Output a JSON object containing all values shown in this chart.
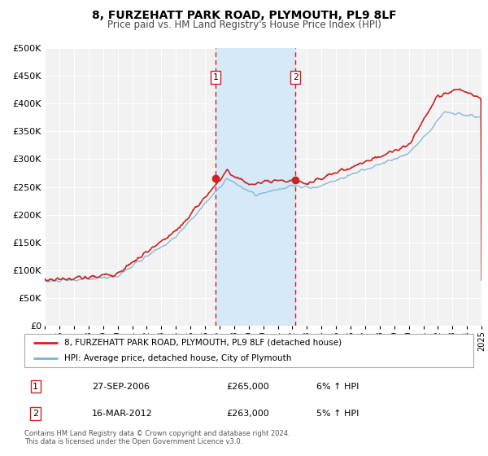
{
  "title": "8, FURZEHATT PARK ROAD, PLYMOUTH, PL9 8LF",
  "subtitle": "Price paid vs. HM Land Registry's House Price Index (HPI)",
  "background_color": "#ffffff",
  "plot_bg_color": "#f2f2f2",
  "grid_color": "#ffffff",
  "hpi_line_color": "#7fb3d3",
  "price_line_color": "#cc2222",
  "sale1_date_num": 2006.74,
  "sale1_price": 265000,
  "sale2_date_num": 2012.21,
  "sale2_price": 263000,
  "shade_color": "#d6e9f8",
  "dashed_line_color": "#cc2222",
  "legend_line1": "8, FURZEHATT PARK ROAD, PLYMOUTH, PL9 8LF (detached house)",
  "legend_line2": "HPI: Average price, detached house, City of Plymouth",
  "table_row1": [
    "1",
    "27-SEP-2006",
    "£265,000",
    "6% ↑ HPI"
  ],
  "table_row2": [
    "2",
    "16-MAR-2012",
    "£263,000",
    "5% ↑ HPI"
  ],
  "footnote": "Contains HM Land Registry data © Crown copyright and database right 2024.\nThis data is licensed under the Open Government Licence v3.0.",
  "xmin": 1995,
  "xmax": 2025,
  "ymin": 0,
  "ymax": 500000,
  "yticks": [
    0,
    50000,
    100000,
    150000,
    200000,
    250000,
    300000,
    350000,
    400000,
    450000,
    500000
  ]
}
